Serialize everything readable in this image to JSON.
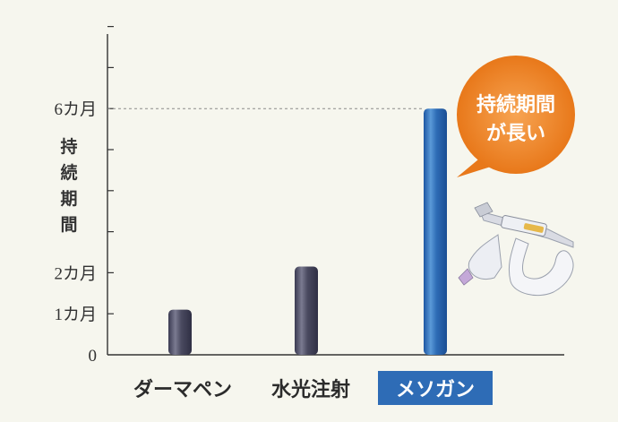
{
  "chart_data": {
    "type": "bar",
    "categories": [
      "ダーマペン",
      "水光注射",
      "メソガン"
    ],
    "values": [
      1.1,
      2.15,
      6.0
    ],
    "ylim": [
      0,
      8
    ],
    "yticks": [
      0,
      1,
      2,
      3,
      4,
      5,
      6,
      7,
      8
    ],
    "ytick_labels": [
      {
        "value": 0,
        "label": "0"
      },
      {
        "value": 1,
        "label": "1カ月"
      },
      {
        "value": 2,
        "label": "2カ月"
      },
      {
        "value": 6,
        "label": "6カ月"
      }
    ],
    "ylabel": "持続期間",
    "reference_line": {
      "value": 6
    },
    "highlight_category": "メソガン",
    "annotation": {
      "line1": "持続期間",
      "line2": "が長い"
    },
    "colors": {
      "bar": "#4a4a60",
      "highlight_bar": "#2e6cb6",
      "highlight_label_bg": "#2e6cb6",
      "bubble": "#ef8a2a",
      "axis": "#333333",
      "background": "#f6f6ee"
    },
    "grid": false
  }
}
